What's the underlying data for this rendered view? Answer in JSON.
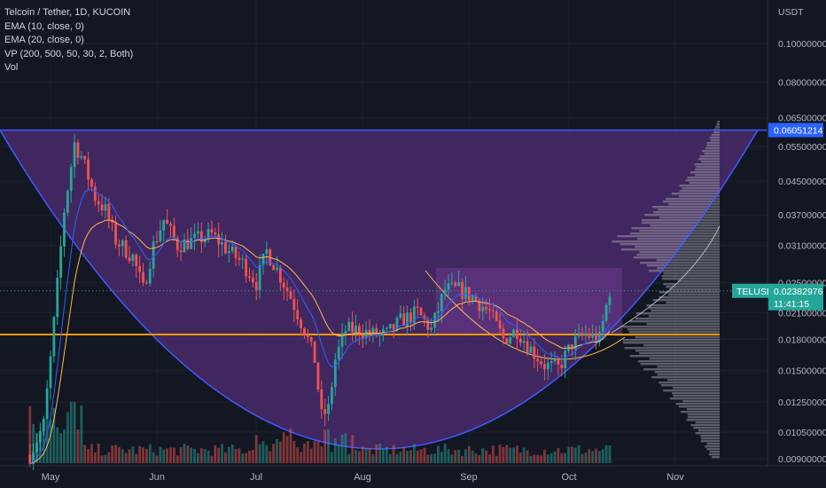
{
  "header": {
    "symbol_line": "Telcoin / Tether, 1D, KUCOIN",
    "indicators": [
      "EMA (10, close, 0)",
      "EMA (20, close, 0)",
      "VP (200, 500, 50, 30, 2, Both)",
      "Vol"
    ]
  },
  "axis": {
    "currency": "USDT",
    "price_labels": [
      "0.10000000",
      "0.08000000",
      "0.06500000",
      "0.05500000",
      "0.04500000",
      "0.03700000",
      "0.03100000",
      "0.02500000",
      "0.02100000",
      "0.01800000",
      "0.01500000",
      "0.01250000",
      "0.01050000",
      "0.00900000"
    ],
    "time_labels": [
      "May",
      "Jun",
      "Jul",
      "Aug",
      "Sep",
      "Oct",
      "Nov"
    ]
  },
  "badges": {
    "top_price": "0.06051214",
    "symbol": "TELUSDT",
    "last_price": "0.02382976",
    "countdown": "11:41:15"
  },
  "colors": {
    "background": "#131722",
    "up": "#26a69a",
    "down": "#ef5350",
    "ema10": "#2962ff",
    "ema20": "#ffb74d",
    "cup_line": "#3d5afe",
    "cup_fill": "#4a2a6b",
    "horizontal_line": "#ff9800",
    "volume_profile": "#9598a1"
  },
  "chart_data": {
    "type": "candlestick",
    "scale": "log",
    "y_range": [
      0.0087,
      0.125
    ],
    "x_axis": [
      "May",
      "Jun",
      "Jul",
      "Aug",
      "Sep",
      "Oct",
      "Nov"
    ],
    "key_levels": {
      "cup_rim": 0.06051214,
      "support": 0.0185,
      "last_close": 0.02382976
    },
    "ohlc_daily_approx": [
      {
        "period": "late Apr - early May",
        "open": 0.009,
        "high": 0.068,
        "low": 0.0085,
        "close": 0.056
      },
      {
        "period": "May",
        "open": 0.056,
        "high": 0.068,
        "low": 0.0235,
        "close": 0.031
      },
      {
        "period": "Jun",
        "open": 0.031,
        "high": 0.037,
        "low": 0.0225,
        "close": 0.029
      },
      {
        "period": "Jul",
        "open": 0.029,
        "high": 0.032,
        "low": 0.0098,
        "close": 0.0175
      },
      {
        "period": "Aug",
        "open": 0.0175,
        "high": 0.0275,
        "low": 0.0165,
        "close": 0.024
      },
      {
        "period": "Sep",
        "open": 0.024,
        "high": 0.025,
        "low": 0.0145,
        "close": 0.0155
      },
      {
        "period": "Oct",
        "open": 0.0155,
        "high": 0.0245,
        "low": 0.0152,
        "close": 0.02382976
      }
    ]
  }
}
